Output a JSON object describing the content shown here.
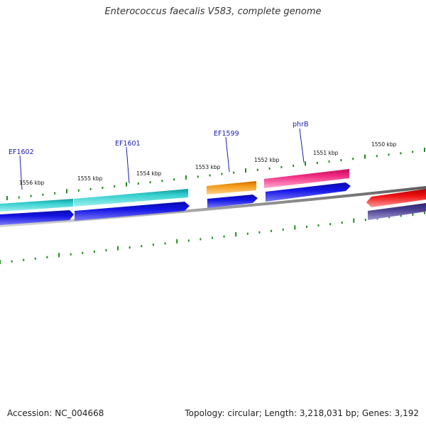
{
  "title": "Enterococcus faecalis V583, complete genome",
  "footer": {
    "accession": "Accession: NC_004668",
    "summary": "Topology: circular; Length: 3,218,031 bp; Genes: 3,192"
  },
  "colors": {
    "background": "#ffffff",
    "backbone": "#8a8a8a",
    "tick": "#1f8a1f",
    "gene_label": "#1b1bb0",
    "cyan_feature": "#35cfcf",
    "orange_feature": "#f39a14",
    "magenta_feature": "#f0287f",
    "blue_cds": "#1414e6",
    "red_feature": "#f01414",
    "purple_cds": "#4a4092"
  },
  "tick_labels": [
    "1556 kbp",
    "1555 kbp",
    "1554 kbp",
    "1553 kbp",
    "1552 kbp",
    "1551 kbp",
    "1550 kbp"
  ],
  "gene_labels": [
    "EF1602",
    "EF1601",
    "EF1599",
    "phrB"
  ]
}
